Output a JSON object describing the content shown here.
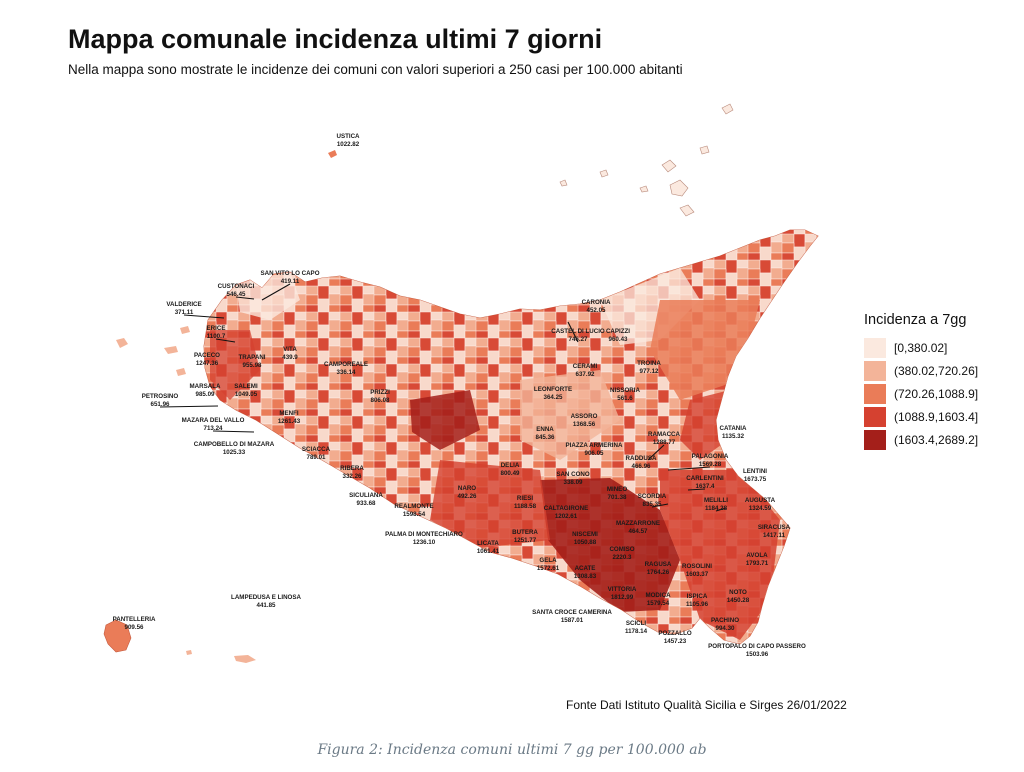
{
  "title": "Mappa comunale incidenza ultimi 7 giorni",
  "subtitle": "Nella mappa sono mostrate le incidenze dei comuni con valori superiori a 250 casi per 100.000 abitanti",
  "legend": {
    "title": "Incidenza a 7gg",
    "items": [
      {
        "label": "[0,380.02]",
        "color": "#fbe9df"
      },
      {
        "label": "(380.02,720.26]",
        "color": "#f3b499"
      },
      {
        "label": "(720.26,1088.9]",
        "color": "#ea7c58"
      },
      {
        "label": "(1088.9,1603.4]",
        "color": "#d54130"
      },
      {
        "label": "(1603.4,2689.2]",
        "color": "#a41f1a"
      }
    ]
  },
  "municipalities": [
    {
      "name": "USTICA",
      "value": "1022.82"
    },
    {
      "name": "SAN VITO LO CAPO",
      "value": "419.11"
    },
    {
      "name": "CUSTONACI",
      "value": "546.45"
    },
    {
      "name": "VALDERICE",
      "value": "371.11"
    },
    {
      "name": "ERICE",
      "value": "1100.7"
    },
    {
      "name": "PACECO",
      "value": "1247.36"
    },
    {
      "name": "TRAPANI",
      "value": "955.98"
    },
    {
      "name": "VITA",
      "value": "439.9"
    },
    {
      "name": "CAMPOREALE",
      "value": "336.14"
    },
    {
      "name": "MARSALA",
      "value": "985.09"
    },
    {
      "name": "SALEMI",
      "value": "1049.05"
    },
    {
      "name": "PETROSINO",
      "value": "651.96"
    },
    {
      "name": "MAZARA DEL VALLO",
      "value": "713.24"
    },
    {
      "name": "MENFI",
      "value": "1261.43"
    },
    {
      "name": "PRIZZI",
      "value": "806.08"
    },
    {
      "name": "CAMPOBELLO DI MAZARA",
      "value": "1025.33"
    },
    {
      "name": "SCIACCA",
      "value": "789.01"
    },
    {
      "name": "RIBERA",
      "value": "332.26"
    },
    {
      "name": "SICULIANA",
      "value": "933.68"
    },
    {
      "name": "REALMONTE",
      "value": "1598.54"
    },
    {
      "name": "PALMA DI MONTECHIARO",
      "value": "1236.10"
    },
    {
      "name": "NARO",
      "value": "492.26"
    },
    {
      "name": "DELIA",
      "value": "800.49"
    },
    {
      "name": "RIESI",
      "value": "1188.58"
    },
    {
      "name": "BUTERA",
      "value": "1251.77"
    },
    {
      "name": "LICATA",
      "value": "1061.41"
    },
    {
      "name": "GELA",
      "value": "1572.61"
    },
    {
      "name": "CALTAGIRONE",
      "value": "1202.61"
    },
    {
      "name": "NISCEMI",
      "value": "1050.88"
    },
    {
      "name": "MAZZARRONE",
      "value": "464.57"
    },
    {
      "name": "COMISO",
      "value": "2220.3"
    },
    {
      "name": "ACATE",
      "value": "1308.83"
    },
    {
      "name": "VITTORIA",
      "value": "1812.99"
    },
    {
      "name": "RAGUSA",
      "value": "1764.26"
    },
    {
      "name": "SANTA CROCE CAMERINA",
      "value": "1587.01"
    },
    {
      "name": "MODICA",
      "value": "1579.54"
    },
    {
      "name": "SCICLI",
      "value": "1178.14"
    },
    {
      "name": "ISPICA",
      "value": "1105.96"
    },
    {
      "name": "POZZALLO",
      "value": "1457.23"
    },
    {
      "name": "ROSOLINI",
      "value": "1603.37"
    },
    {
      "name": "NOTO",
      "value": "1450.28"
    },
    {
      "name": "PACHINO",
      "value": "994.30"
    },
    {
      "name": "PORTOPALO DI CAPO PASSERO",
      "value": "1503.96"
    },
    {
      "name": "AVOLA",
      "value": "1793.71"
    },
    {
      "name": "SIRACUSA",
      "value": "1417.11"
    },
    {
      "name": "AUGUSTA",
      "value": "1324.59"
    },
    {
      "name": "MELILLI",
      "value": "1184.28"
    },
    {
      "name": "LENTINI",
      "value": "1673.75"
    },
    {
      "name": "CARLENTINI",
      "value": "1637.4"
    },
    {
      "name": "PALAGONIA",
      "value": "1569.28"
    },
    {
      "name": "RAMACCA",
      "value": "1288.77"
    },
    {
      "name": "CATANIA",
      "value": "1135.32"
    },
    {
      "name": "SCORDIA",
      "value": "835.35"
    },
    {
      "name": "MINEO",
      "value": "701.38"
    },
    {
      "name": "RADDUSA",
      "value": "466.96"
    },
    {
      "name": "PIAZZA ARMERINA",
      "value": "906.05"
    },
    {
      "name": "SAN CONO",
      "value": "338.09"
    },
    {
      "name": "ENNA",
      "value": "845.36"
    },
    {
      "name": "ASSORO",
      "value": "1368.56"
    },
    {
      "name": "LEONFORTE",
      "value": "364.25"
    },
    {
      "name": "NISSORIA",
      "value": "561.6"
    },
    {
      "name": "CERAMI",
      "value": "637.92"
    },
    {
      "name": "TROINA",
      "value": "977.12"
    },
    {
      "name": "CASTEL DI LUCIO",
      "value": "746.27"
    },
    {
      "name": "CAPIZZI",
      "value": "960.43"
    },
    {
      "name": "CARONIA",
      "value": "452.05"
    },
    {
      "name": "LAMPEDUSA E LINOSA",
      "value": "441.85"
    },
    {
      "name": "PANTELLERIA",
      "value": "909.56"
    }
  ],
  "source": "Fonte Dati Istituto Qualità Sicilia e Sirges 26/01/2022",
  "caption": "Figura 2: Incidenza comuni ultimi 7 gg per 100.000 ab"
}
